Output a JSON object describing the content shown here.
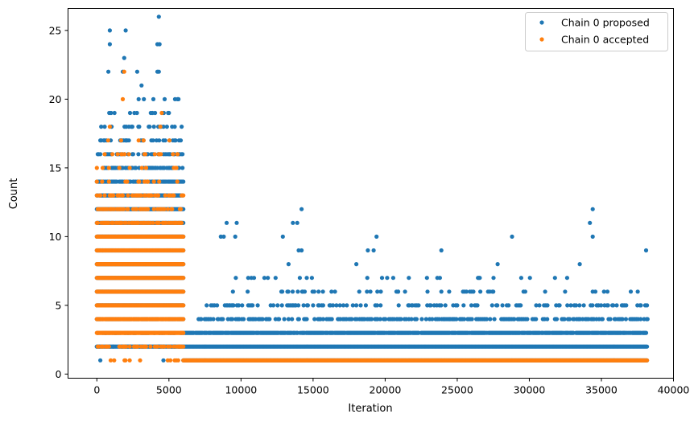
{
  "chart_data": {
    "type": "scatter",
    "title": "",
    "xlabel": "Iteration",
    "ylabel": "Count",
    "xlim": [
      -2000,
      40000
    ],
    "ylim": [
      -0.3,
      26.6
    ],
    "x_ticks": [
      0,
      5000,
      10000,
      15000,
      20000,
      25000,
      30000,
      35000,
      40000
    ],
    "y_ticks": [
      0,
      5,
      10,
      15,
      20,
      25
    ],
    "grid": false,
    "legend_position": "top-right",
    "colors": {
      "proposed": "#1f77b4",
      "accepted": "#ff7f0e"
    },
    "series": [
      {
        "name": "Chain 0 proposed",
        "color": "#1f77b4",
        "bands": [
          {
            "y": 1,
            "x_start": 6000,
            "x_end": 38200,
            "density": 1.0
          },
          {
            "y": 2,
            "x_start": 0,
            "x_end": 38200,
            "density": 1.0
          },
          {
            "y": 3,
            "x_start": 6000,
            "x_end": 38200,
            "density": 0.9
          },
          {
            "y": 4,
            "x_start": 7000,
            "x_end": 38200,
            "density": 0.45
          },
          {
            "y": 5,
            "x_start": 7500,
            "x_end": 38200,
            "density": 0.25
          },
          {
            "y": 6,
            "x_start": 8000,
            "x_end": 38200,
            "density": 0.1
          },
          {
            "y": 7,
            "x_start": 8500,
            "x_end": 35000,
            "density": 0.06
          },
          {
            "y": 1,
            "x_start": 0,
            "x_end": 6000,
            "density": 0.03
          },
          {
            "y": 2,
            "x_start": 0,
            "x_end": 6000,
            "density": 0.15
          },
          {
            "y": 3,
            "x_start": 0,
            "x_end": 6000,
            "density": 0.6
          },
          {
            "y": 4,
            "x_start": 0,
            "x_end": 6000,
            "density": 0.9
          },
          {
            "y": 5,
            "x_start": 0,
            "x_end": 6000,
            "density": 1.0
          },
          {
            "y": 6,
            "x_start": 0,
            "x_end": 6000,
            "density": 1.0
          },
          {
            "y": 7,
            "x_start": 0,
            "x_end": 6000,
            "density": 1.0
          },
          {
            "y": 8,
            "x_start": 0,
            "x_end": 6000,
            "density": 1.0
          },
          {
            "y": 9,
            "x_start": 0,
            "x_end": 6000,
            "density": 1.0
          },
          {
            "y": 10,
            "x_start": 0,
            "x_end": 6000,
            "density": 1.0
          },
          {
            "y": 11,
            "x_start": 0,
            "x_end": 6000,
            "density": 1.0
          },
          {
            "y": 12,
            "x_start": 0,
            "x_end": 6000,
            "density": 1.0
          },
          {
            "y": 13,
            "x_start": 0,
            "x_end": 6000,
            "density": 0.9
          },
          {
            "y": 14,
            "x_start": 0,
            "x_end": 6000,
            "density": 0.75
          },
          {
            "y": 15,
            "x_start": 0,
            "x_end": 6000,
            "density": 0.55
          },
          {
            "y": 16,
            "x_start": 0,
            "x_end": 6000,
            "density": 0.35
          },
          {
            "y": 17,
            "x_start": 0,
            "x_end": 6000,
            "density": 0.28
          },
          {
            "y": 18,
            "x_start": 0,
            "x_end": 6000,
            "density": 0.2
          },
          {
            "y": 19,
            "x_start": 500,
            "x_end": 5700,
            "density": 0.08
          },
          {
            "y": 20,
            "x_start": 800,
            "x_end": 5700,
            "density": 0.05
          },
          {
            "y": 21,
            "x_start": 800,
            "x_end": 4600,
            "density": 0.035
          }
        ],
        "points": [
          [
            900,
            25
          ],
          [
            900,
            24
          ],
          [
            2000,
            25
          ],
          [
            4300,
            26
          ],
          [
            4200,
            24
          ],
          [
            4350,
            24
          ],
          [
            1900,
            23
          ],
          [
            800,
            22
          ],
          [
            2800,
            22
          ],
          [
            4200,
            22
          ],
          [
            4300,
            22
          ],
          [
            1800,
            22
          ],
          [
            3100,
            21
          ],
          [
            5600,
            20
          ],
          [
            5000,
            19
          ],
          [
            9000,
            11
          ],
          [
            9700,
            11
          ],
          [
            14200,
            12
          ],
          [
            13600,
            11
          ],
          [
            13900,
            11
          ],
          [
            19400,
            10
          ],
          [
            34400,
            12
          ],
          [
            34200,
            11
          ],
          [
            28800,
            10
          ],
          [
            8600,
            10
          ],
          [
            8800,
            10
          ],
          [
            9600,
            10
          ],
          [
            12900,
            10
          ],
          [
            34400,
            10
          ],
          [
            14000,
            9
          ],
          [
            14200,
            9
          ],
          [
            18800,
            9
          ],
          [
            19200,
            9
          ],
          [
            23900,
            9
          ],
          [
            38100,
            9
          ],
          [
            10500,
            7
          ],
          [
            10900,
            7
          ],
          [
            12400,
            7
          ],
          [
            15700,
            5
          ],
          [
            16200,
            5
          ],
          [
            20900,
            6
          ],
          [
            21900,
            5
          ],
          [
            25000,
            5
          ],
          [
            26300,
            5
          ],
          [
            30700,
            5
          ],
          [
            32100,
            5
          ],
          [
            35400,
            5
          ],
          [
            36500,
            5
          ],
          [
            27800,
            8
          ],
          [
            33500,
            8
          ],
          [
            13300,
            8
          ],
          [
            18000,
            8
          ]
        ]
      },
      {
        "name": "Chain 0 accepted",
        "color": "#ff7f0e",
        "bands": [
          {
            "y": 1,
            "x_start": 6000,
            "x_end": 38200,
            "density": 1.0
          },
          {
            "y": 1,
            "x_start": 900,
            "x_end": 6000,
            "density": 0.12
          },
          {
            "y": 2,
            "x_start": 0,
            "x_end": 6000,
            "density": 0.45
          },
          {
            "y": 3,
            "x_start": 0,
            "x_end": 6000,
            "density": 1.0
          },
          {
            "y": 4,
            "x_start": 0,
            "x_end": 6000,
            "density": 1.0
          },
          {
            "y": 5,
            "x_start": 0,
            "x_end": 6000,
            "density": 1.0
          },
          {
            "y": 6,
            "x_start": 0,
            "x_end": 6000,
            "density": 1.0
          },
          {
            "y": 7,
            "x_start": 0,
            "x_end": 6000,
            "density": 1.0
          },
          {
            "y": 8,
            "x_start": 0,
            "x_end": 6000,
            "density": 1.0
          },
          {
            "y": 9,
            "x_start": 0,
            "x_end": 6000,
            "density": 1.0
          },
          {
            "y": 10,
            "x_start": 0,
            "x_end": 6000,
            "density": 1.0
          },
          {
            "y": 11,
            "x_start": 0,
            "x_end": 6000,
            "density": 0.6
          },
          {
            "y": 12,
            "x_start": 0,
            "x_end": 6000,
            "density": 0.5
          },
          {
            "y": 13,
            "x_start": 0,
            "x_end": 6000,
            "density": 0.35
          },
          {
            "y": 14,
            "x_start": 0,
            "x_end": 6000,
            "density": 0.2
          },
          {
            "y": 15,
            "x_start": 0,
            "x_end": 6000,
            "density": 0.15
          },
          {
            "y": 16,
            "x_start": 300,
            "x_end": 5700,
            "density": 0.07
          },
          {
            "y": 17,
            "x_start": 300,
            "x_end": 5200,
            "density": 0.04
          }
        ],
        "points": [
          [
            1900,
            22
          ],
          [
            1800,
            20
          ],
          [
            4500,
            19
          ],
          [
            4400,
            18
          ],
          [
            4300,
            16
          ],
          [
            900,
            18
          ],
          [
            1700,
            16
          ],
          [
            2900,
            17
          ],
          [
            5600,
            16
          ],
          [
            400,
            15
          ],
          [
            3400,
            15
          ]
        ]
      }
    ]
  }
}
